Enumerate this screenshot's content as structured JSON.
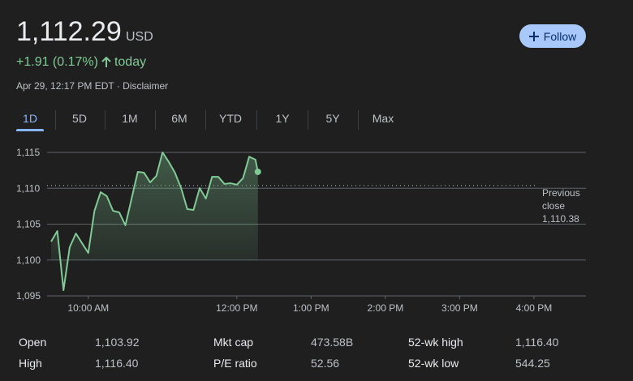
{
  "header": {
    "price": "1,112.29",
    "currency": "USD",
    "change": "+1.91 (0.17%)",
    "change_period": "today",
    "timestamp": "Apr 29, 12:17 PM EDT · Disclaimer",
    "follow": "Follow"
  },
  "tabs": [
    "1D",
    "5D",
    "1M",
    "6M",
    "YTD",
    "1Y",
    "5Y",
    "Max"
  ],
  "chart_data": {
    "type": "line",
    "x": [
      570,
      575,
      580,
      585,
      590,
      595,
      600,
      605,
      610,
      615,
      620,
      625,
      630,
      635,
      640,
      645,
      650,
      655,
      660,
      665,
      670,
      675,
      680,
      685,
      690,
      695,
      700,
      705,
      710,
      715,
      720,
      725,
      730,
      735,
      737
    ],
    "series": [
      {
        "color": "#81c995",
        "values": [
          1102.57,
          1104.04,
          1095.79,
          1101.78,
          1103.7,
          1102.34,
          1100.99,
          1106.86,
          1109.46,
          1108.9,
          1106.86,
          1106.64,
          1104.83,
          1108.56,
          1112.29,
          1112.18,
          1110.82,
          1111.72,
          1115.0,
          1113.68,
          1112.18,
          1110.03,
          1107.09,
          1106.98,
          1110.03,
          1108.56,
          1111.6,
          1111.6,
          1110.6,
          1110.7,
          1110.5,
          1111.4,
          1114.4,
          1114.0,
          1112.29
        ]
      }
    ],
    "xlim": [
      570,
      1002
    ],
    "xticks": [
      {
        "value": 600,
        "label": "10:00 AM"
      },
      {
        "value": 720,
        "label": "12:00 PM"
      },
      {
        "value": 780,
        "label": "1:00 PM"
      },
      {
        "value": 840,
        "label": "2:00 PM"
      },
      {
        "value": 900,
        "label": "3:00 PM"
      },
      {
        "value": 960,
        "label": "4:00 PM"
      }
    ],
    "ylim": [
      1095,
      1115
    ],
    "yticks": [
      {
        "value": 1095,
        "label": "1,095"
      },
      {
        "value": 1100,
        "label": "1,100"
      },
      {
        "value": 1105,
        "label": "1,105"
      },
      {
        "value": 1110,
        "label": "1,110"
      },
      {
        "value": 1115,
        "label": "1,115"
      }
    ],
    "grid": true,
    "previous_close_title": "Previous close",
    "previous_close": {
      "value": 1110.38,
      "label": "1,110.38"
    }
  },
  "stats": [
    [
      [
        "Open",
        "1,103.92"
      ],
      [
        "Mkt cap",
        "473.58B"
      ],
      [
        "52-wk high",
        "1,116.40"
      ]
    ],
    [
      [
        "High",
        "1,116.40"
      ],
      [
        "P/E ratio",
        "52.56"
      ],
      [
        "52-wk low",
        "544.25"
      ]
    ]
  ]
}
